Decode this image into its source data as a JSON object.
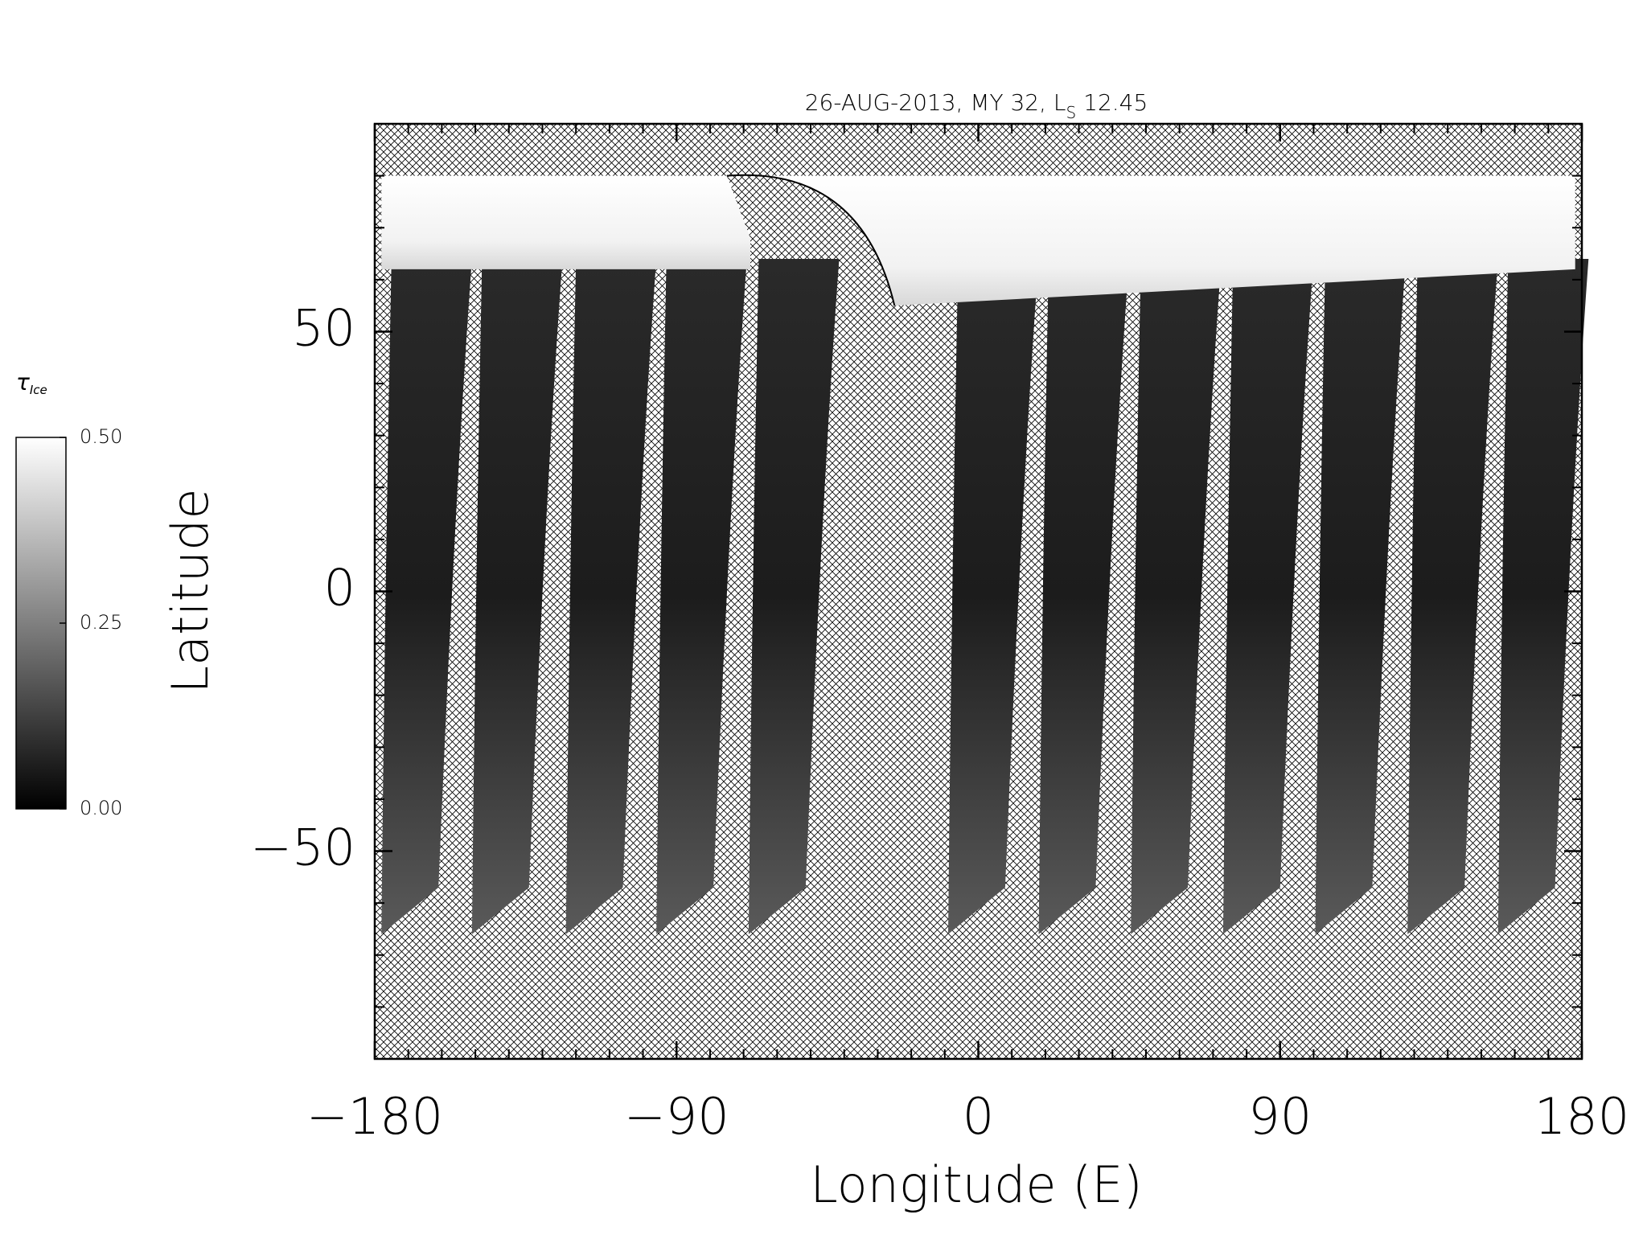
{
  "chart_data": {
    "type": "map",
    "title_parts": [
      "26-AUG-2013, MY 32,  L",
      "S",
      " 12.45"
    ],
    "x_label": "Longitude (E)",
    "y_label": "Latitude",
    "xlim": [
      -180,
      180
    ],
    "xticks": [
      {
        "value": -180,
        "label": "−180"
      },
      {
        "value": -90,
        "label": "−90"
      },
      0,
      90,
      180
    ],
    "xminor": 10,
    "ylim": [
      -90,
      90
    ],
    "yticks": [
      {
        "value": -50,
        "label": "−50"
      },
      0,
      50
    ],
    "yminor": 10,
    "colorbar": {
      "label": "τ",
      "label_subscript": "Ice",
      "lim": [
        0,
        0.5
      ],
      "ticks": [
        {
          "value": 0,
          "label": "0.00"
        },
        {
          "value": 0.25,
          "label": "0.25"
        },
        {
          "value": 0.5,
          "label": "0.50"
        }
      ],
      "colors": [
        "#000000",
        "#ffffff"
      ]
    }
  }
}
